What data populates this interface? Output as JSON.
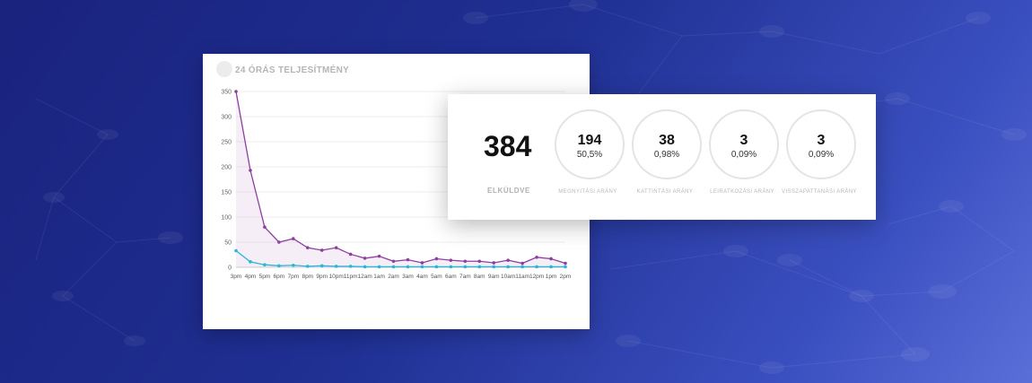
{
  "chart_data": {
    "type": "line",
    "title": "24 ÓRÁS TELJESÍTMÉNY",
    "categories": [
      "3pm",
      "4pm",
      "5pm",
      "6pm",
      "7pm",
      "8pm",
      "9pm",
      "10pm",
      "11pm",
      "12am",
      "1am",
      "2am",
      "3am",
      "4am",
      "5am",
      "6am",
      "7am",
      "8am",
      "9am",
      "10am",
      "11am",
      "12pm",
      "1pm",
      "2pm"
    ],
    "y_ticks": [
      0,
      50,
      100,
      150,
      200,
      250,
      300,
      350
    ],
    "ylim": [
      0,
      350
    ],
    "grid": true,
    "series": [
      {
        "color": "#8e3fa0",
        "values": [
          350,
          193,
          80,
          50,
          57,
          39,
          34,
          39,
          26,
          18,
          22,
          12,
          15,
          9,
          17,
          14,
          12,
          12,
          9,
          14,
          8,
          20,
          17,
          8
        ]
      },
      {
        "color": "#29b6d8",
        "values": [
          33,
          11,
          5,
          3,
          4,
          2,
          3,
          2,
          2,
          1,
          1,
          1,
          1,
          1,
          1,
          1,
          1,
          1,
          1,
          1,
          1,
          1,
          1,
          1
        ]
      }
    ]
  },
  "stats": {
    "main": {
      "value": "384",
      "label": "ELKÜLDVE"
    },
    "items": [
      {
        "value": "194",
        "percent": "50,5%",
        "label": "MEGNYITÁSI ARÁNY"
      },
      {
        "value": "38",
        "percent": "0,98%",
        "label": "KATTINTÁSI ARÁNY"
      },
      {
        "value": "3",
        "percent": "0,09%",
        "label": "LEIRATKOZÁSI ARÁNY"
      },
      {
        "value": "3",
        "percent": "0,09%",
        "label": "VISSZAPATTANÁSI ARÁNY"
      }
    ]
  }
}
